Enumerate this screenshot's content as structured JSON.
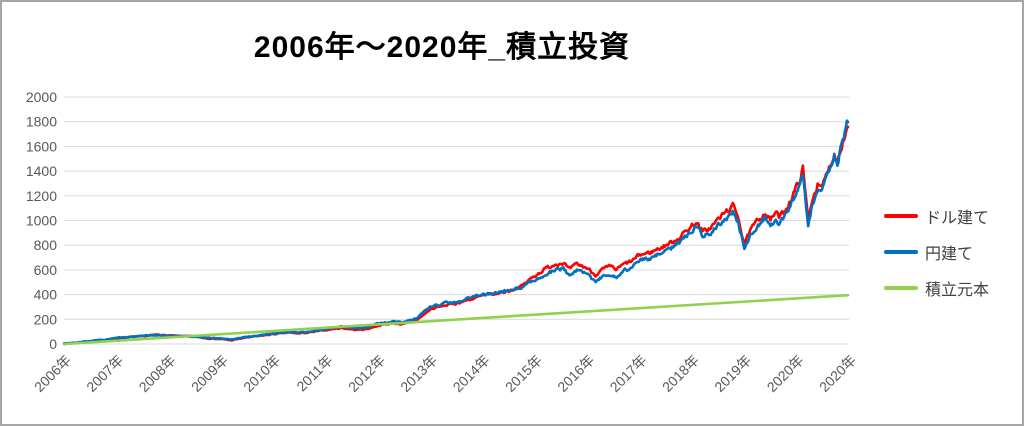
{
  "page": {
    "title": "2006年～2020年_積立投資"
  },
  "colors": {
    "background": "#ffffff",
    "frame_border": "#a6a6a6",
    "grid": "#d9d9d9",
    "axis_text": "#595959",
    "legend_text": "#404040",
    "title_text": "#000000",
    "series_red": "#ff0000",
    "series_blue": "#0070c0",
    "series_green": "#92d050"
  },
  "chart_data": {
    "type": "line",
    "title": "2006年～2020年_積立投資",
    "xlabel": "",
    "ylabel": "",
    "grid": "horizontal",
    "legend_position": "right",
    "x_axis": {
      "range": [
        2006,
        2021
      ],
      "tick_labels": [
        "2006年",
        "2007年",
        "2008年",
        "2009年",
        "2010年",
        "2011年",
        "2012年",
        "2013年",
        "2014年",
        "2015年",
        "2016年",
        "2017年",
        "2018年",
        "2019年",
        "2020年",
        "2020年"
      ]
    },
    "y_axis": {
      "range": [
        0,
        2000
      ],
      "tick_step": 200,
      "tick_labels": [
        "0",
        "200",
        "400",
        "600",
        "800",
        "1000",
        "1200",
        "1400",
        "1600",
        "1800",
        "2000"
      ]
    },
    "series": [
      {
        "name": "ドル建て",
        "color": "#ff0000",
        "points": [
          [
            2006.0,
            3
          ],
          [
            2006.25,
            10
          ],
          [
            2006.5,
            20
          ],
          [
            2006.75,
            30
          ],
          [
            2007.0,
            46
          ],
          [
            2007.25,
            55
          ],
          [
            2007.5,
            62
          ],
          [
            2007.8,
            76
          ],
          [
            2008.0,
            68
          ],
          [
            2008.25,
            64
          ],
          [
            2008.5,
            60
          ],
          [
            2008.7,
            48
          ],
          [
            2009.0,
            40
          ],
          [
            2009.2,
            30
          ],
          [
            2009.5,
            54
          ],
          [
            2009.75,
            66
          ],
          [
            2010.0,
            80
          ],
          [
            2010.3,
            92
          ],
          [
            2010.5,
            86
          ],
          [
            2010.75,
            96
          ],
          [
            2011.0,
            114
          ],
          [
            2011.3,
            130
          ],
          [
            2011.6,
            114
          ],
          [
            2011.8,
            122
          ],
          [
            2012.0,
            150
          ],
          [
            2012.3,
            168
          ],
          [
            2012.5,
            160
          ],
          [
            2012.75,
            195
          ],
          [
            2013.0,
            280
          ],
          [
            2013.25,
            310
          ],
          [
            2013.5,
            330
          ],
          [
            2013.75,
            360
          ],
          [
            2014.0,
            390
          ],
          [
            2014.25,
            405
          ],
          [
            2014.5,
            430
          ],
          [
            2014.75,
            470
          ],
          [
            2015.0,
            555
          ],
          [
            2015.2,
            610
          ],
          [
            2015.4,
            650
          ],
          [
            2015.55,
            660
          ],
          [
            2015.65,
            600
          ],
          [
            2015.8,
            645
          ],
          [
            2015.9,
            630
          ],
          [
            2016.0,
            615
          ],
          [
            2016.15,
            560
          ],
          [
            2016.3,
            605
          ],
          [
            2016.45,
            625
          ],
          [
            2016.55,
            600
          ],
          [
            2016.7,
            645
          ],
          [
            2016.85,
            670
          ],
          [
            2017.0,
            720
          ],
          [
            2017.2,
            740
          ],
          [
            2017.4,
            780
          ],
          [
            2017.6,
            820
          ],
          [
            2017.8,
            880
          ],
          [
            2018.0,
            960
          ],
          [
            2018.08,
            990
          ],
          [
            2018.2,
            905
          ],
          [
            2018.35,
            940
          ],
          [
            2018.5,
            1010
          ],
          [
            2018.65,
            1070
          ],
          [
            2018.78,
            1115
          ],
          [
            2018.88,
            1040
          ],
          [
            2019.0,
            810
          ],
          [
            2019.15,
            940
          ],
          [
            2019.3,
            1020
          ],
          [
            2019.4,
            1070
          ],
          [
            2019.5,
            1000
          ],
          [
            2019.6,
            1070
          ],
          [
            2019.67,
            1020
          ],
          [
            2019.8,
            1100
          ],
          [
            2019.92,
            1200
          ],
          [
            2020.05,
            1320
          ],
          [
            2020.12,
            1420
          ],
          [
            2020.22,
            1000
          ],
          [
            2020.3,
            1180
          ],
          [
            2020.4,
            1290
          ],
          [
            2020.47,
            1250
          ],
          [
            2020.57,
            1370
          ],
          [
            2020.67,
            1490
          ],
          [
            2020.72,
            1540
          ],
          [
            2020.78,
            1490
          ],
          [
            2020.85,
            1610
          ],
          [
            2020.92,
            1690
          ],
          [
            2020.98,
            1770
          ]
        ]
      },
      {
        "name": "円建て",
        "color": "#0070c0",
        "points": [
          [
            2006.0,
            3
          ],
          [
            2006.25,
            12
          ],
          [
            2006.5,
            23
          ],
          [
            2006.75,
            33
          ],
          [
            2007.0,
            48
          ],
          [
            2007.25,
            58
          ],
          [
            2007.5,
            66
          ],
          [
            2007.8,
            74
          ],
          [
            2008.0,
            66
          ],
          [
            2008.25,
            62
          ],
          [
            2008.5,
            59
          ],
          [
            2008.7,
            50
          ],
          [
            2009.0,
            44
          ],
          [
            2009.2,
            36
          ],
          [
            2009.5,
            58
          ],
          [
            2009.75,
            70
          ],
          [
            2010.0,
            86
          ],
          [
            2010.3,
            98
          ],
          [
            2010.5,
            92
          ],
          [
            2010.75,
            104
          ],
          [
            2011.0,
            124
          ],
          [
            2011.3,
            142
          ],
          [
            2011.6,
            128
          ],
          [
            2011.8,
            136
          ],
          [
            2012.0,
            168
          ],
          [
            2012.3,
            185
          ],
          [
            2012.5,
            178
          ],
          [
            2012.75,
            215
          ],
          [
            2013.0,
            300
          ],
          [
            2013.25,
            330
          ],
          [
            2013.5,
            345
          ],
          [
            2013.75,
            375
          ],
          [
            2014.0,
            400
          ],
          [
            2014.25,
            412
          ],
          [
            2014.5,
            430
          ],
          [
            2014.75,
            455
          ],
          [
            2015.0,
            520
          ],
          [
            2015.2,
            565
          ],
          [
            2015.4,
            600
          ],
          [
            2015.55,
            610
          ],
          [
            2015.65,
            550
          ],
          [
            2015.8,
            595
          ],
          [
            2015.9,
            580
          ],
          [
            2016.0,
            560
          ],
          [
            2016.15,
            505
          ],
          [
            2016.3,
            550
          ],
          [
            2016.45,
            570
          ],
          [
            2016.55,
            535
          ],
          [
            2016.7,
            590
          ],
          [
            2016.85,
            620
          ],
          [
            2017.0,
            675
          ],
          [
            2017.2,
            695
          ],
          [
            2017.4,
            735
          ],
          [
            2017.6,
            775
          ],
          [
            2017.8,
            835
          ],
          [
            2018.0,
            920
          ],
          [
            2018.08,
            950
          ],
          [
            2018.2,
            865
          ],
          [
            2018.35,
            900
          ],
          [
            2018.5,
            960
          ],
          [
            2018.65,
            1020
          ],
          [
            2018.78,
            1065
          ],
          [
            2018.88,
            990
          ],
          [
            2019.0,
            780
          ],
          [
            2019.15,
            900
          ],
          [
            2019.3,
            975
          ],
          [
            2019.4,
            1020
          ],
          [
            2019.5,
            950
          ],
          [
            2019.6,
            1020
          ],
          [
            2019.67,
            975
          ],
          [
            2019.8,
            1060
          ],
          [
            2019.92,
            1150
          ],
          [
            2020.05,
            1270
          ],
          [
            2020.12,
            1360
          ],
          [
            2020.22,
            950
          ],
          [
            2020.3,
            1130
          ],
          [
            2020.4,
            1250
          ],
          [
            2020.47,
            1210
          ],
          [
            2020.57,
            1340
          ],
          [
            2020.67,
            1470
          ],
          [
            2020.72,
            1520
          ],
          [
            2020.78,
            1470
          ],
          [
            2020.85,
            1620
          ],
          [
            2020.92,
            1720
          ],
          [
            2020.98,
            1800
          ]
        ]
      },
      {
        "name": "積立元本",
        "color": "#92d050",
        "points": [
          [
            2006.0,
            0
          ],
          [
            2020.98,
            395
          ]
        ]
      }
    ]
  }
}
